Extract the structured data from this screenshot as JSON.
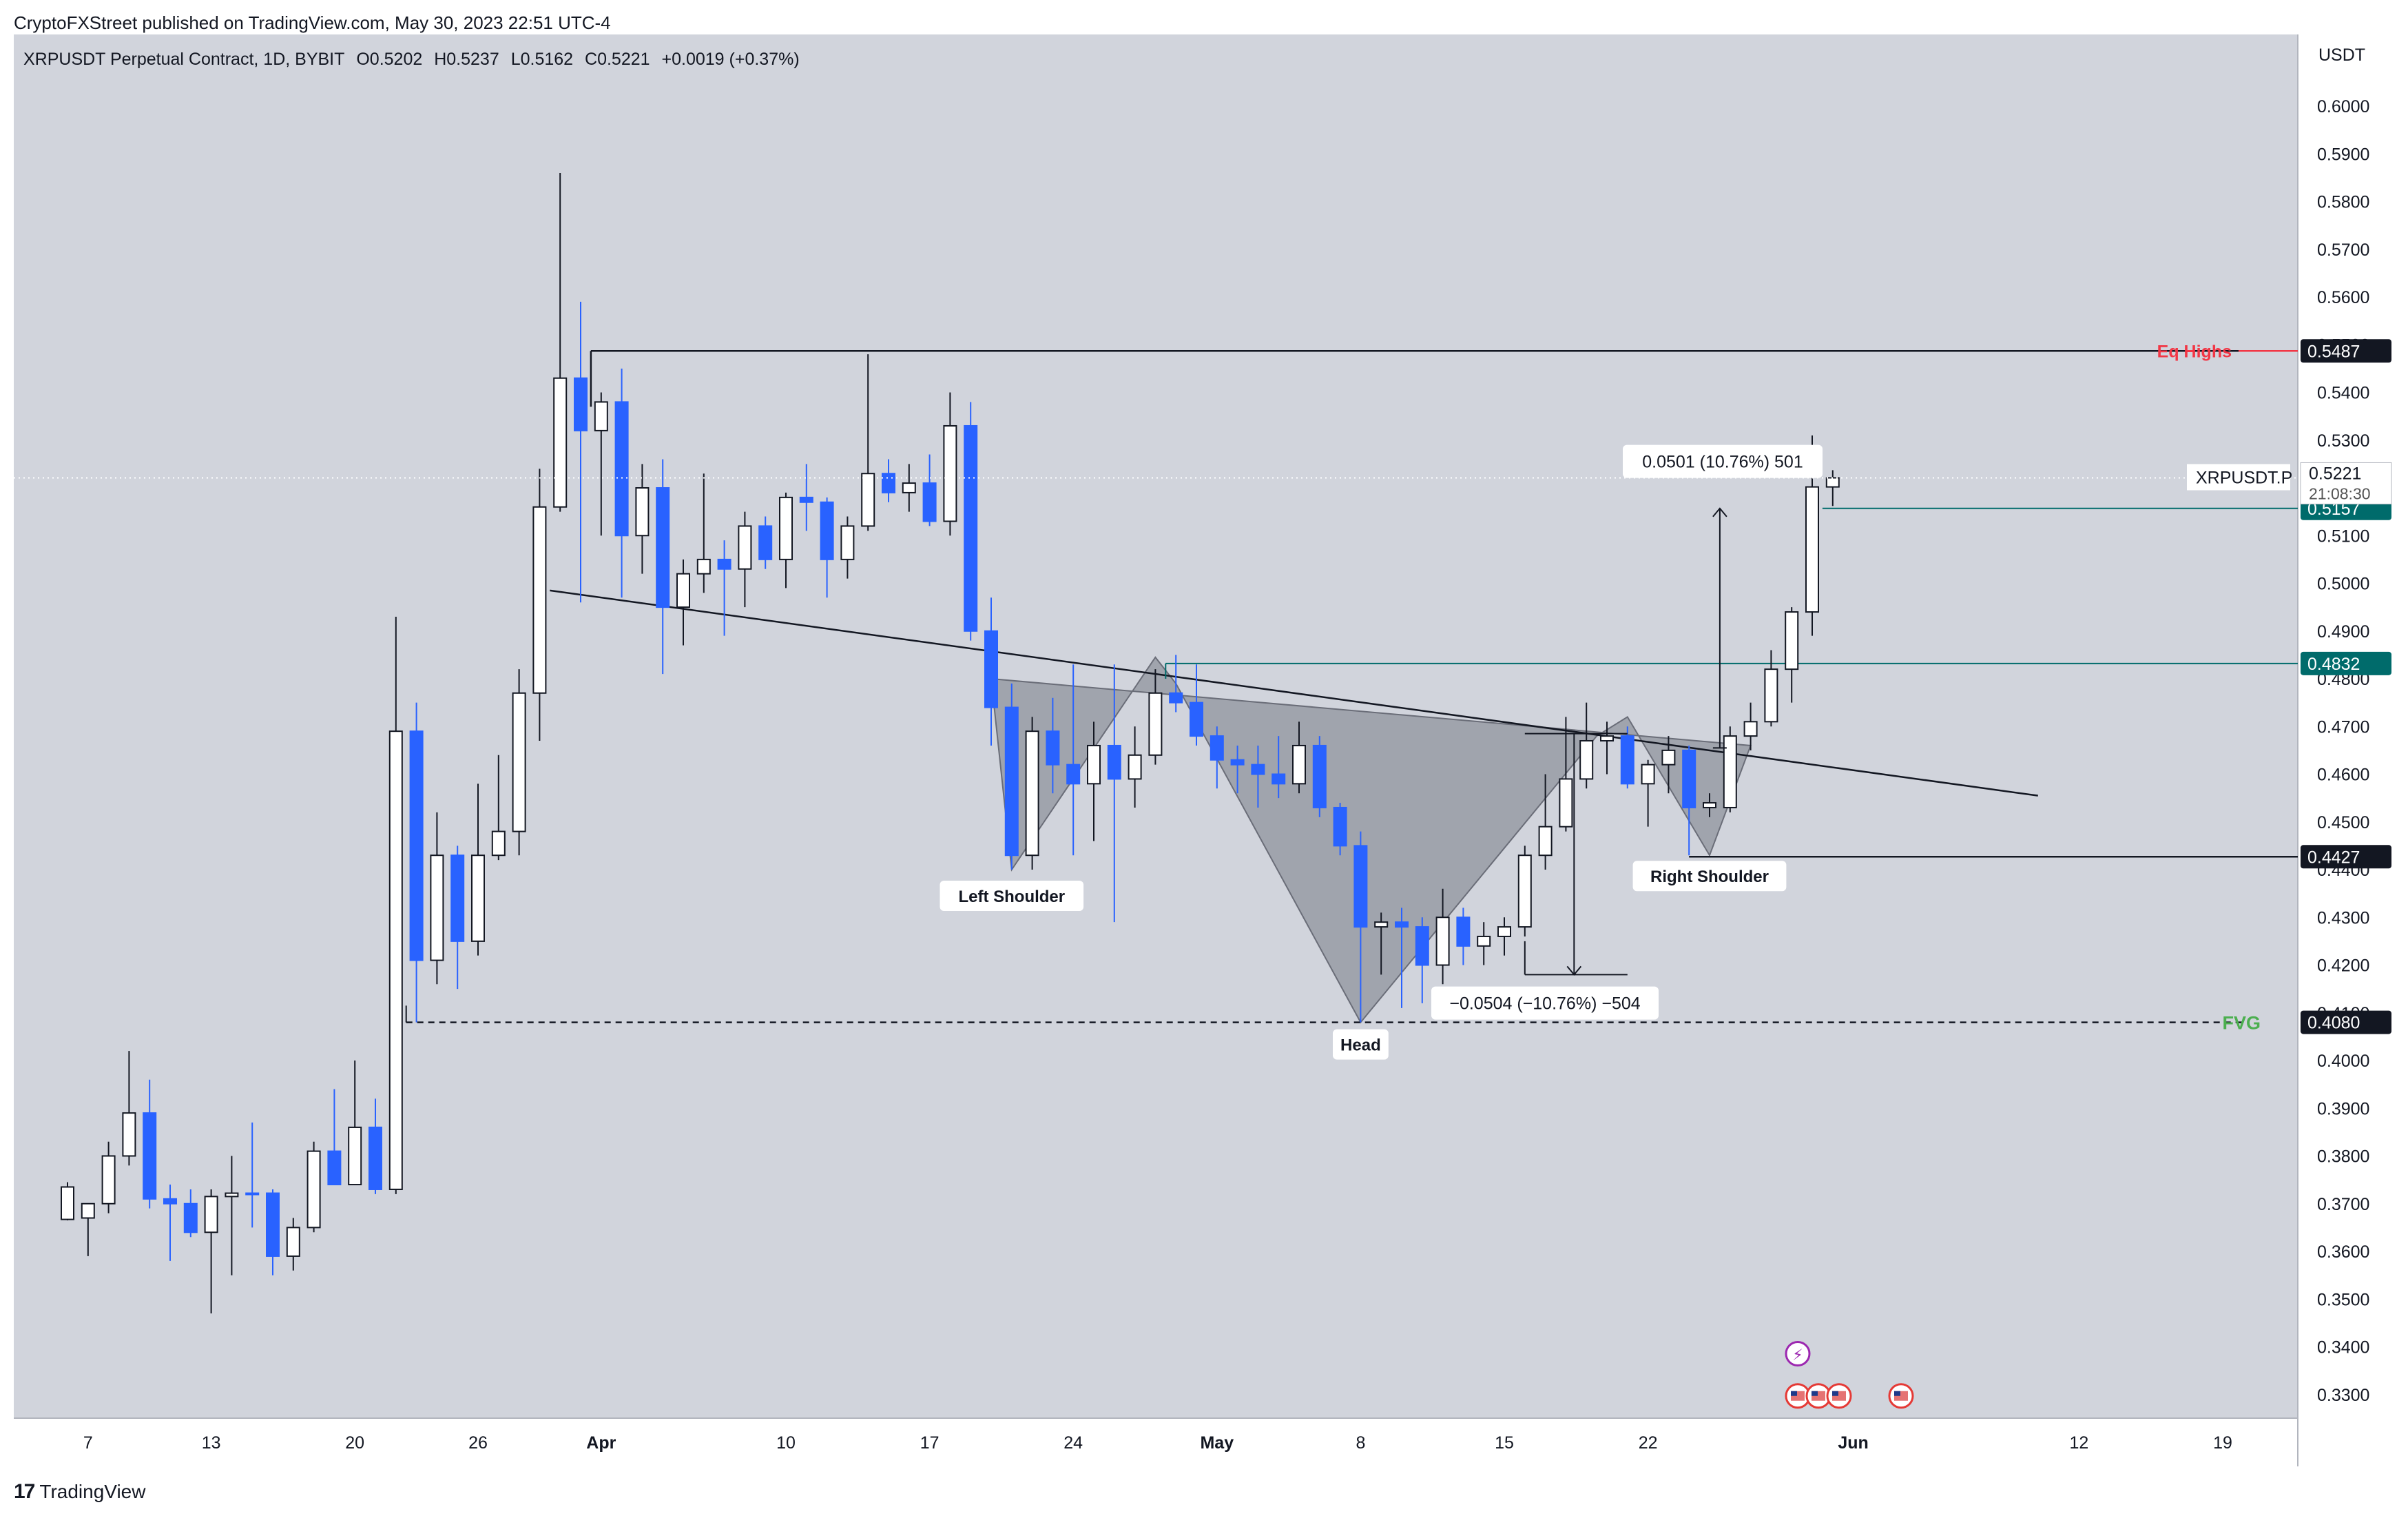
{
  "header": {
    "publisher_line": "CryptoFXStreet published on TradingView.com, May 30, 2023 22:51 UTC-4"
  },
  "symbol_bar": {
    "title": "XRPUSDT Perpetual Contract, 1D, BYBIT",
    "open": "O0.5202",
    "high": "H0.5237",
    "low": "L0.5162",
    "close": "C0.5221",
    "change": "+0.0019 (+0.37%)"
  },
  "footer": {
    "brand": "TradingView",
    "logo_icon": "tradingview-logo-icon"
  },
  "colors": {
    "background": "#d1d4dc",
    "bull_body": "#ffffff",
    "bear_body": "#2962ff",
    "wick": "#131722",
    "pattern_fill": "#787b86",
    "eq_highs": "#f23645",
    "fvg": "#4caf50",
    "teal": "#006b6b"
  },
  "chart_data": {
    "type": "candlestick",
    "title": "XRPUSDT Perpetual Contract, 1D, BYBIT",
    "y_unit": "USDT",
    "ylim": [
      0.3225,
      0.6115
    ],
    "x_day_range": [
      0,
      104
    ],
    "y_ticks": [
      0.33,
      0.34,
      0.35,
      0.36,
      0.37,
      0.38,
      0.39,
      0.4,
      0.41,
      0.42,
      0.43,
      0.44,
      0.45,
      0.46,
      0.47,
      0.48,
      0.49,
      0.5,
      0.51,
      0.52,
      0.53,
      0.54,
      0.55,
      0.56,
      0.57,
      0.58,
      0.59,
      0.6
    ],
    "y_tick_labels": [
      "0.3300",
      "0.3400",
      "0.3500",
      "0.3600",
      "0.3700",
      "0.3800",
      "0.3900",
      "0.4000",
      "0.4100",
      "0.4200",
      "0.4300",
      "0.4400",
      "0.4500",
      "0.4600",
      "0.4700",
      "0.4800",
      "0.4900",
      "0.5000",
      "0.5100",
      "0.5200",
      "0.5300",
      "0.5400",
      "0.5500",
      "0.5600",
      "0.5700",
      "0.5800",
      "0.5900",
      "0.6000"
    ],
    "x_ticks": [
      {
        "day": 1,
        "label": "7"
      },
      {
        "day": 7,
        "label": "13"
      },
      {
        "day": 14,
        "label": "20"
      },
      {
        "day": 20,
        "label": "26"
      },
      {
        "day": 26,
        "label": "Apr"
      },
      {
        "day": 35,
        "label": "10"
      },
      {
        "day": 42,
        "label": "17"
      },
      {
        "day": 49,
        "label": "24"
      },
      {
        "day": 56,
        "label": "May"
      },
      {
        "day": 63,
        "label": "8"
      },
      {
        "day": 70,
        "label": "15"
      },
      {
        "day": 77,
        "label": "22"
      },
      {
        "day": 87,
        "label": "Jun"
      },
      {
        "day": 98,
        "label": "12"
      },
      {
        "day": 105,
        "label": "19"
      }
    ],
    "candles": [
      {
        "d": 0,
        "o": 0.3667,
        "h": 0.3745,
        "l": 0.3665,
        "c": 0.3735
      },
      {
        "d": 1,
        "o": 0.367,
        "h": 0.37,
        "l": 0.359,
        "c": 0.37
      },
      {
        "d": 2,
        "o": 0.37,
        "h": 0.383,
        "l": 0.368,
        "c": 0.38
      },
      {
        "d": 3,
        "o": 0.38,
        "h": 0.402,
        "l": 0.378,
        "c": 0.389
      },
      {
        "d": 4,
        "o": 0.389,
        "h": 0.396,
        "l": 0.369,
        "c": 0.371
      },
      {
        "d": 5,
        "o": 0.371,
        "h": 0.374,
        "l": 0.358,
        "c": 0.37
      },
      {
        "d": 6,
        "o": 0.37,
        "h": 0.373,
        "l": 0.363,
        "c": 0.364
      },
      {
        "d": 7,
        "o": 0.364,
        "h": 0.373,
        "l": 0.347,
        "c": 0.3715
      },
      {
        "d": 8,
        "o": 0.3715,
        "h": 0.38,
        "l": 0.355,
        "c": 0.3722
      },
      {
        "d": 9,
        "o": 0.3722,
        "h": 0.387,
        "l": 0.365,
        "c": 0.372
      },
      {
        "d": 10,
        "o": 0.3722,
        "h": 0.373,
        "l": 0.355,
        "c": 0.359
      },
      {
        "d": 11,
        "o": 0.359,
        "h": 0.367,
        "l": 0.356,
        "c": 0.365
      },
      {
        "d": 12,
        "o": 0.365,
        "h": 0.383,
        "l": 0.364,
        "c": 0.381
      },
      {
        "d": 13,
        "o": 0.381,
        "h": 0.394,
        "l": 0.374,
        "c": 0.374
      },
      {
        "d": 14,
        "o": 0.374,
        "h": 0.4,
        "l": 0.374,
        "c": 0.386
      },
      {
        "d": 15,
        "o": 0.386,
        "h": 0.392,
        "l": 0.372,
        "c": 0.373
      },
      {
        "d": 16,
        "o": 0.373,
        "h": 0.493,
        "l": 0.372,
        "c": 0.469
      },
      {
        "d": 17,
        "o": 0.469,
        "h": 0.475,
        "l": 0.408,
        "c": 0.421
      },
      {
        "d": 18,
        "o": 0.421,
        "h": 0.452,
        "l": 0.416,
        "c": 0.443
      },
      {
        "d": 19,
        "o": 0.443,
        "h": 0.445,
        "l": 0.415,
        "c": 0.425
      },
      {
        "d": 20,
        "o": 0.425,
        "h": 0.458,
        "l": 0.422,
        "c": 0.443
      },
      {
        "d": 21,
        "o": 0.443,
        "h": 0.464,
        "l": 0.442,
        "c": 0.448
      },
      {
        "d": 22,
        "o": 0.448,
        "h": 0.482,
        "l": 0.443,
        "c": 0.477
      },
      {
        "d": 23,
        "o": 0.477,
        "h": 0.524,
        "l": 0.467,
        "c": 0.516
      },
      {
        "d": 24,
        "o": 0.516,
        "h": 0.586,
        "l": 0.515,
        "c": 0.543
      },
      {
        "d": 25,
        "o": 0.543,
        "h": 0.559,
        "l": 0.496,
        "c": 0.532
      },
      {
        "d": 26,
        "o": 0.532,
        "h": 0.54,
        "l": 0.51,
        "c": 0.538
      },
      {
        "d": 27,
        "o": 0.538,
        "h": 0.545,
        "l": 0.497,
        "c": 0.51
      },
      {
        "d": 28,
        "o": 0.51,
        "h": 0.525,
        "l": 0.502,
        "c": 0.52
      },
      {
        "d": 29,
        "o": 0.52,
        "h": 0.526,
        "l": 0.481,
        "c": 0.495
      },
      {
        "d": 30,
        "o": 0.495,
        "h": 0.505,
        "l": 0.487,
        "c": 0.502
      },
      {
        "d": 31,
        "o": 0.502,
        "h": 0.523,
        "l": 0.498,
        "c": 0.505
      },
      {
        "d": 32,
        "o": 0.505,
        "h": 0.509,
        "l": 0.489,
        "c": 0.503
      },
      {
        "d": 33,
        "o": 0.503,
        "h": 0.515,
        "l": 0.495,
        "c": 0.512
      },
      {
        "d": 34,
        "o": 0.512,
        "h": 0.514,
        "l": 0.503,
        "c": 0.505
      },
      {
        "d": 35,
        "o": 0.505,
        "h": 0.519,
        "l": 0.499,
        "c": 0.518
      },
      {
        "d": 36,
        "o": 0.518,
        "h": 0.525,
        "l": 0.511,
        "c": 0.517
      },
      {
        "d": 37,
        "o": 0.517,
        "h": 0.518,
        "l": 0.497,
        "c": 0.505
      },
      {
        "d": 38,
        "o": 0.505,
        "h": 0.514,
        "l": 0.501,
        "c": 0.512
      },
      {
        "d": 39,
        "o": 0.512,
        "h": 0.548,
        "l": 0.511,
        "c": 0.523
      },
      {
        "d": 40,
        "o": 0.523,
        "h": 0.526,
        "l": 0.517,
        "c": 0.519
      },
      {
        "d": 41,
        "o": 0.519,
        "h": 0.525,
        "l": 0.515,
        "c": 0.521
      },
      {
        "d": 42,
        "o": 0.521,
        "h": 0.527,
        "l": 0.512,
        "c": 0.513
      },
      {
        "d": 43,
        "o": 0.513,
        "h": 0.54,
        "l": 0.51,
        "c": 0.533
      },
      {
        "d": 44,
        "o": 0.533,
        "h": 0.538,
        "l": 0.488,
        "c": 0.49
      },
      {
        "d": 45,
        "o": 0.49,
        "h": 0.497,
        "l": 0.466,
        "c": 0.474
      },
      {
        "d": 46,
        "o": 0.474,
        "h": 0.479,
        "l": 0.44,
        "c": 0.443
      },
      {
        "d": 47,
        "o": 0.443,
        "h": 0.472,
        "l": 0.44,
        "c": 0.469
      },
      {
        "d": 48,
        "o": 0.469,
        "h": 0.476,
        "l": 0.456,
        "c": 0.462
      },
      {
        "d": 49,
        "o": 0.462,
        "h": 0.483,
        "l": 0.443,
        "c": 0.458
      },
      {
        "d": 50,
        "o": 0.458,
        "h": 0.471,
        "l": 0.446,
        "c": 0.466
      },
      {
        "d": 51,
        "o": 0.466,
        "h": 0.483,
        "l": 0.429,
        "c": 0.459
      },
      {
        "d": 52,
        "o": 0.459,
        "h": 0.47,
        "l": 0.453,
        "c": 0.464
      },
      {
        "d": 53,
        "o": 0.464,
        "h": 0.482,
        "l": 0.462,
        "c": 0.477
      },
      {
        "d": 54,
        "o": 0.477,
        "h": 0.485,
        "l": 0.473,
        "c": 0.475
      },
      {
        "d": 55,
        "o": 0.475,
        "h": 0.483,
        "l": 0.466,
        "c": 0.468
      },
      {
        "d": 56,
        "o": 0.468,
        "h": 0.47,
        "l": 0.457,
        "c": 0.463
      },
      {
        "d": 57,
        "o": 0.463,
        "h": 0.466,
        "l": 0.456,
        "c": 0.462
      },
      {
        "d": 58,
        "o": 0.462,
        "h": 0.466,
        "l": 0.453,
        "c": 0.46
      },
      {
        "d": 59,
        "o": 0.46,
        "h": 0.468,
        "l": 0.455,
        "c": 0.458
      },
      {
        "d": 60,
        "o": 0.458,
        "h": 0.471,
        "l": 0.456,
        "c": 0.466
      },
      {
        "d": 61,
        "o": 0.466,
        "h": 0.468,
        "l": 0.451,
        "c": 0.453
      },
      {
        "d": 62,
        "o": 0.453,
        "h": 0.454,
        "l": 0.443,
        "c": 0.445
      },
      {
        "d": 63,
        "o": 0.445,
        "h": 0.448,
        "l": 0.408,
        "c": 0.428
      },
      {
        "d": 64,
        "o": 0.428,
        "h": 0.431,
        "l": 0.418,
        "c": 0.429
      },
      {
        "d": 65,
        "o": 0.429,
        "h": 0.432,
        "l": 0.411,
        "c": 0.428
      },
      {
        "d": 66,
        "o": 0.428,
        "h": 0.43,
        "l": 0.412,
        "c": 0.42
      },
      {
        "d": 67,
        "o": 0.42,
        "h": 0.436,
        "l": 0.416,
        "c": 0.43
      },
      {
        "d": 68,
        "o": 0.43,
        "h": 0.432,
        "l": 0.42,
        "c": 0.424
      },
      {
        "d": 69,
        "o": 0.424,
        "h": 0.429,
        "l": 0.42,
        "c": 0.426
      },
      {
        "d": 70,
        "o": 0.426,
        "h": 0.43,
        "l": 0.422,
        "c": 0.428
      },
      {
        "d": 71,
        "o": 0.428,
        "h": 0.445,
        "l": 0.426,
        "c": 0.443
      },
      {
        "d": 72,
        "o": 0.443,
        "h": 0.46,
        "l": 0.44,
        "c": 0.449
      },
      {
        "d": 73,
        "o": 0.449,
        "h": 0.472,
        "l": 0.448,
        "c": 0.459
      },
      {
        "d": 74,
        "o": 0.459,
        "h": 0.475,
        "l": 0.457,
        "c": 0.467
      },
      {
        "d": 75,
        "o": 0.467,
        "h": 0.471,
        "l": 0.46,
        "c": 0.468
      },
      {
        "d": 76,
        "o": 0.468,
        "h": 0.47,
        "l": 0.457,
        "c": 0.458
      },
      {
        "d": 77,
        "o": 0.458,
        "h": 0.463,
        "l": 0.449,
        "c": 0.462
      },
      {
        "d": 78,
        "o": 0.462,
        "h": 0.468,
        "l": 0.456,
        "c": 0.465
      },
      {
        "d": 79,
        "o": 0.465,
        "h": 0.466,
        "l": 0.443,
        "c": 0.453
      },
      {
        "d": 80,
        "o": 0.453,
        "h": 0.456,
        "l": 0.451,
        "c": 0.454
      },
      {
        "d": 81,
        "o": 0.453,
        "h": 0.47,
        "l": 0.452,
        "c": 0.468
      },
      {
        "d": 82,
        "o": 0.468,
        "h": 0.475,
        "l": 0.465,
        "c": 0.471
      },
      {
        "d": 83,
        "o": 0.471,
        "h": 0.486,
        "l": 0.47,
        "c": 0.482
      },
      {
        "d": 84,
        "o": 0.482,
        "h": 0.495,
        "l": 0.475,
        "c": 0.494
      },
      {
        "d": 85,
        "o": 0.494,
        "h": 0.531,
        "l": 0.489,
        "c": 0.5202
      },
      {
        "d": 86,
        "o": 0.5202,
        "h": 0.5237,
        "l": 0.5162,
        "c": 0.5221
      }
    ],
    "levels": [
      {
        "name": "Eq Highs",
        "value": 0.5487,
        "label": "0.5487"
      },
      {
        "name": "",
        "value": 0.5157,
        "label": "0.5157"
      },
      {
        "name": "",
        "value": 0.4832,
        "label": "0.4832"
      },
      {
        "name": "",
        "value": 0.4427,
        "label": "0.4427"
      },
      {
        "name": "FVG",
        "value": 0.408,
        "label": "0.4080"
      }
    ],
    "last_price": {
      "symbol": "XRPUSDT.P",
      "value": "0.5221",
      "countdown": "21:08:30"
    },
    "neckline": {
      "from": {
        "d": 23.5,
        "v": 0.4985
      },
      "to": {
        "d": 96,
        "v": 0.4555
      }
    },
    "pattern": {
      "left_shoulder": {
        "d": 47,
        "v": 0.44,
        "label": "Left Shoulder"
      },
      "head": {
        "d": 63,
        "v": 0.408,
        "label": "Head"
      },
      "right_shoulder": {
        "d": 79,
        "v": 0.443,
        "label": "Right Shoulder"
      }
    },
    "measure_up": {
      "label": "0.0501 (10.76%) 501",
      "d": 80.5,
      "from": 0.4655,
      "to": 0.5157
    },
    "measure_down": {
      "label": "−0.0504 (−10.76%) −504",
      "d": 73.4,
      "from": 0.4685,
      "to": 0.418
    }
  }
}
